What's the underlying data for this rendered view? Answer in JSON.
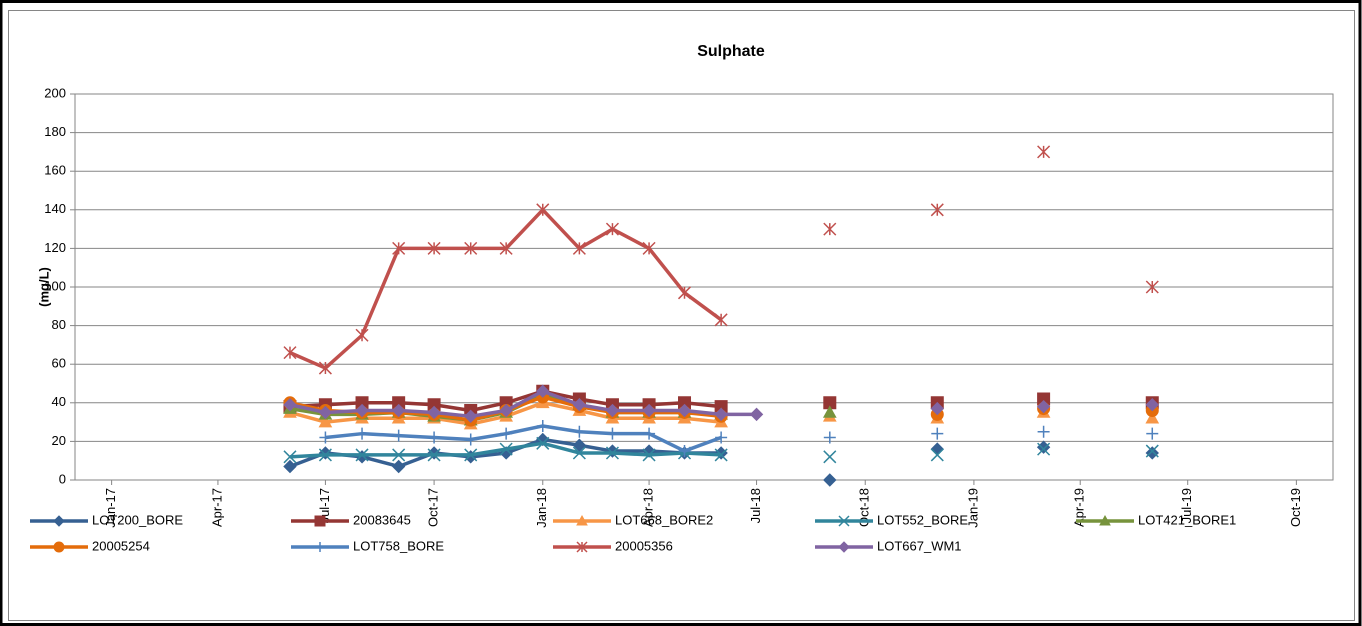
{
  "chart_data": {
    "type": "line",
    "title": "Sulphate",
    "y_label": "(mg/L)",
    "x": [
      "2017-06",
      "2017-07",
      "2017-08",
      "2017-09",
      "2017-10",
      "2017-11",
      "2017-12",
      "2018-01",
      "2018-02",
      "2018-03",
      "2018-04",
      "2018-05",
      "2018-06",
      "2018-07",
      "2018-08",
      "2018-09",
      "2018-10",
      "2018-11",
      "2018-12",
      "2019-01",
      "2019-02",
      "2019-03",
      "2019-04",
      "2019-05",
      "2019-06"
    ],
    "xlim": [
      "2016-12",
      "2019-11"
    ],
    "xticks": [
      {
        "value": "2017-01",
        "label": "Jan-17"
      },
      {
        "value": "2017-04",
        "label": "Apr-17"
      },
      {
        "value": "2017-07",
        "label": "Jul-17"
      },
      {
        "value": "2017-10",
        "label": "Oct-17"
      },
      {
        "value": "2018-01",
        "label": "Jan-18"
      },
      {
        "value": "2018-04",
        "label": "Apr-18"
      },
      {
        "value": "2018-07",
        "label": "Jul-18"
      },
      {
        "value": "2018-10",
        "label": "Oct-18"
      },
      {
        "value": "2019-01",
        "label": "Jan-19"
      },
      {
        "value": "2019-04",
        "label": "Apr-19"
      },
      {
        "value": "2019-07",
        "label": "Jul-19"
      },
      {
        "value": "2019-10",
        "label": "Oct-19"
      }
    ],
    "ylim": [
      0,
      200
    ],
    "yticks": [
      0,
      20,
      40,
      60,
      80,
      100,
      120,
      140,
      160,
      180,
      200
    ],
    "grid": true,
    "legend": "bottom",
    "series": [
      {
        "name": "LOT200_BORE",
        "color": "#366092",
        "marker": "diamond",
        "values": [
          7,
          14,
          12,
          7,
          14,
          12,
          14,
          21,
          18,
          15,
          15,
          14,
          14,
          null,
          null,
          0,
          null,
          null,
          16,
          null,
          null,
          17,
          null,
          null,
          14
        ]
      },
      {
        "name": "20083645",
        "color": "#943634",
        "marker": "square",
        "values": [
          38,
          39,
          40,
          40,
          39,
          36,
          40,
          46,
          42,
          39,
          39,
          40,
          38,
          null,
          null,
          40,
          null,
          null,
          40,
          null,
          null,
          42,
          null,
          null,
          40
        ]
      },
      {
        "name": "LOT668_BORE2",
        "color": "#f79646",
        "marker": "triangle",
        "values": [
          35,
          30,
          32,
          32,
          32,
          29,
          33,
          40,
          36,
          32,
          32,
          32,
          30,
          null,
          null,
          33,
          null,
          null,
          32,
          null,
          null,
          35,
          null,
          null,
          32
        ]
      },
      {
        "name": "LOT552_BORE",
        "color": "#31859c",
        "marker": "x",
        "values": [
          12,
          13,
          13,
          13,
          13,
          13,
          16,
          19,
          14,
          14,
          13,
          14,
          13,
          null,
          null,
          12,
          null,
          null,
          13,
          null,
          null,
          16,
          null,
          null,
          15
        ]
      },
      {
        "name": "LOT421_BORE1",
        "color": "#77933c",
        "marker": "triangle",
        "values": [
          37,
          34,
          34,
          35,
          33,
          31,
          35,
          44,
          39,
          35,
          35,
          35,
          34,
          null,
          null,
          35,
          null,
          null,
          null,
          null,
          null,
          null,
          null,
          null,
          null
        ]
      },
      {
        "name": "20005254",
        "color": "#e46c0a",
        "marker": "circle",
        "values": [
          40,
          36,
          35,
          35,
          34,
          31,
          36,
          43,
          38,
          35,
          35,
          35,
          33,
          null,
          null,
          null,
          null,
          null,
          34,
          null,
          null,
          37,
          null,
          null,
          36
        ]
      },
      {
        "name": "LOT758_BORE",
        "color": "#4f81bd",
        "marker": "plus",
        "values": [
          null,
          22,
          24,
          23,
          22,
          21,
          24,
          28,
          25,
          24,
          24,
          15,
          22,
          null,
          null,
          22,
          null,
          null,
          24,
          null,
          null,
          25,
          null,
          null,
          24
        ]
      },
      {
        "name": "20005356",
        "color": "#c0504d",
        "marker": "star",
        "values": [
          66,
          58,
          75,
          120,
          120,
          120,
          120,
          140,
          120,
          130,
          120,
          97,
          83,
          null,
          null,
          130,
          null,
          null,
          140,
          null,
          null,
          170,
          null,
          null,
          100
        ]
      },
      {
        "name": "LOT667_WM1",
        "color": "#8064a2",
        "marker": "diamond",
        "values": [
          39,
          35,
          36,
          36,
          35,
          33,
          36,
          46,
          39,
          36,
          36,
          36,
          34,
          34,
          null,
          null,
          null,
          null,
          37,
          null,
          null,
          38,
          null,
          null,
          39
        ]
      }
    ]
  }
}
